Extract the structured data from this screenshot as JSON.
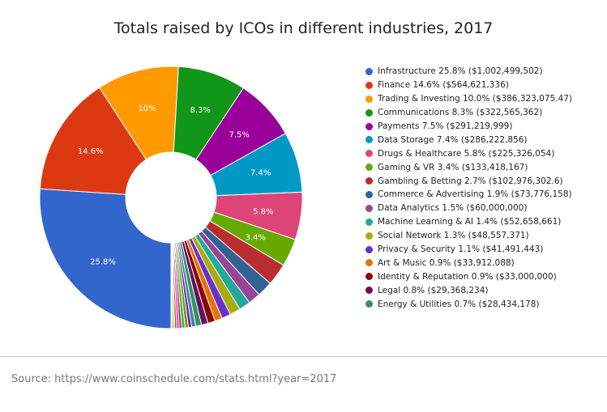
{
  "chart_data": {
    "type": "pie",
    "title": "Totals raised by ICOs in different industries, 2017",
    "legend_position": "right",
    "donut": true,
    "slices": [
      {
        "label": "Infrastructure 25.8% ($1,002,499,502)",
        "value": 25.8,
        "slice_label": "25.8%",
        "color": "#3366cc"
      },
      {
        "label": "Finance 14.6% ($564,621,336)",
        "value": 14.6,
        "slice_label": "14.6%",
        "color": "#dc3912"
      },
      {
        "label": "Trading & Investing 10.0% ($386,323,075.47)",
        "value": 10.0,
        "slice_label": "10%",
        "color": "#ff9900"
      },
      {
        "label": "Communications 8.3% ($322,565,362)",
        "value": 8.3,
        "slice_label": "8.3%",
        "color": "#109618"
      },
      {
        "label": "Payments 7.5% ($291,219,999)",
        "value": 7.5,
        "slice_label": "7.5%",
        "color": "#990099"
      },
      {
        "label": "Data Storage 7.4% ($286,222,856)",
        "value": 7.4,
        "slice_label": "7.4%",
        "color": "#0099c6"
      },
      {
        "label": "Drugs & Healthcare 5.8% ($225,326,054)",
        "value": 5.8,
        "slice_label": "5.8%",
        "color": "#dd4477"
      },
      {
        "label": "Gaming & VR 3.4% ($133,418,167)",
        "value": 3.4,
        "slice_label": "3.4%",
        "color": "#66aa00"
      },
      {
        "label": "Gambling & Betting 2.7% ($102,976,302.6)",
        "value": 2.7,
        "slice_label": "",
        "color": "#b82e2e"
      },
      {
        "label": "Commerce & Advertising 1.9% ($73,776,158)",
        "value": 1.9,
        "slice_label": "",
        "color": "#316395"
      },
      {
        "label": "Data Analytics 1.5% ($60,000,000)",
        "value": 1.5,
        "slice_label": "",
        "color": "#994499"
      },
      {
        "label": "Machine Learning & AI 1.4% ($52,658,661)",
        "value": 1.4,
        "slice_label": "",
        "color": "#22aa99"
      },
      {
        "label": "Social Network 1.3% ($48,557,371)",
        "value": 1.3,
        "slice_label": "",
        "color": "#aaaa11"
      },
      {
        "label": "Privacy & Security 1.1% ($41,491,443)",
        "value": 1.1,
        "slice_label": "",
        "color": "#6633cc"
      },
      {
        "label": "Art & Music 0.9% ($33,912,088)",
        "value": 0.9,
        "slice_label": "",
        "color": "#e67300"
      },
      {
        "label": "Identity & Reputation 0.9% ($33,000,000)",
        "value": 0.9,
        "slice_label": "",
        "color": "#8b0707"
      },
      {
        "label": "Legal 0.8% ($29,368,234)",
        "value": 0.8,
        "slice_label": "",
        "color": "#651067"
      },
      {
        "label": "Energy & Utilities 0.7% ($28,434,178)",
        "value": 0.7,
        "slice_label": "",
        "color": "#329262"
      },
      {
        "value": 0.5,
        "slice_label": "",
        "color": "#5574a6"
      },
      {
        "value": 0.4,
        "slice_label": "",
        "color": "#3b3eac"
      },
      {
        "value": 0.4,
        "slice_label": "",
        "color": "#b77322"
      },
      {
        "value": 0.4,
        "slice_label": "",
        "color": "#16d620"
      },
      {
        "value": 0.3,
        "slice_label": "",
        "color": "#b91383"
      },
      {
        "value": 0.3,
        "slice_label": "",
        "color": "#f4359e"
      },
      {
        "value": 0.25,
        "slice_label": "",
        "color": "#9c5935"
      },
      {
        "value": 0.2,
        "slice_label": "",
        "color": "#a9c413"
      },
      {
        "value": 0.15,
        "slice_label": "",
        "color": "#2a778d"
      },
      {
        "value": 0.1,
        "slice_label": "",
        "color": "#668d1c"
      }
    ]
  },
  "source": "Source: https://www.coinschedule.com/stats.html?year=2017"
}
